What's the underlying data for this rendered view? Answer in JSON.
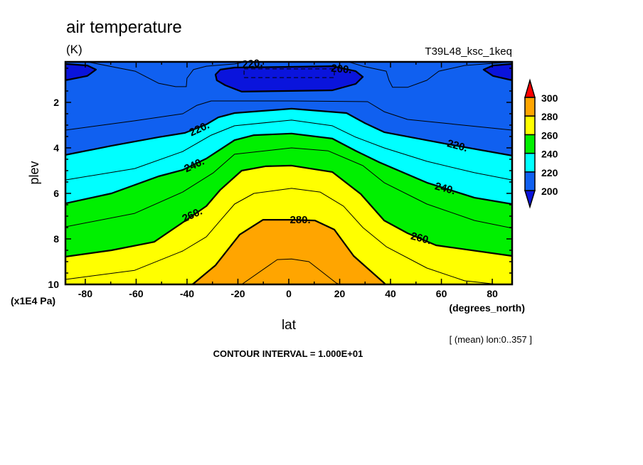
{
  "chart_data": {
    "type": "contour",
    "title": "air temperature",
    "units_label": "(K)",
    "dataset_label": "T39L48_ksc_1keq",
    "xlabel": "lat",
    "xunits": "(degrees_north)",
    "ylabel": "plev",
    "yunits": "(x1E4 Pa)",
    "xlim": [
      -87.8,
      87.8
    ],
    "ylim": [
      10,
      0.22
    ],
    "xticks": [
      -80,
      -60,
      -40,
      -20,
      0,
      20,
      40,
      60,
      80
    ],
    "xtick_labels": [
      "-80",
      "-60",
      "-40",
      "-20",
      "0",
      "20",
      "40",
      "60",
      "80"
    ],
    "yticks": [
      2,
      4,
      6,
      8,
      10
    ],
    "ytick_labels": [
      "2",
      "4",
      "6",
      "8",
      "10"
    ],
    "footer_note": "[ (mean) lon:0..357 ]",
    "contour_interval_text": "CONTOUR INTERVAL = 1.000E+01",
    "colorbar": {
      "levels": [
        200,
        220,
        240,
        260,
        280,
        300
      ],
      "labels": [
        "200",
        "220",
        "240",
        "260",
        "280",
        "300"
      ],
      "under_color": "#0a14dc",
      "colors": [
        "#1060f0",
        "#00ffff",
        "#00f000",
        "#ffff00",
        "#ffa500"
      ],
      "over_color": "#ff0000"
    },
    "contours": [
      {
        "level": 190,
        "style": "dashed",
        "closed": true,
        "points": [
          [
            -17.6,
            0.53
          ],
          [
            17.9,
            0.53
          ],
          [
            17.9,
            0.91
          ],
          [
            -17.6,
            0.91
          ]
        ]
      },
      {
        "level": 200,
        "style": "thick",
        "closed": true,
        "fill": "#0a14dc",
        "points": [
          [
            -28.8,
            0.78
          ],
          [
            -26.9,
            0.56
          ],
          [
            -21.3,
            0.47
          ],
          [
            1.1,
            0.44
          ],
          [
            17.1,
            0.41
          ],
          [
            26.3,
            0.63
          ],
          [
            29.1,
            0.88
          ],
          [
            26.3,
            1.19
          ],
          [
            17.1,
            1.47
          ],
          [
            -1.7,
            1.5
          ],
          [
            -18.5,
            1.53
          ],
          [
            -24.9,
            1.25
          ],
          [
            -28.3,
            1.03
          ]
        ]
      },
      {
        "level": 200,
        "style": "thick",
        "closed": true,
        "fill": "#0a14dc",
        "points": [
          [
            -87.8,
            0.31
          ],
          [
            -79.2,
            0.38
          ],
          [
            -75.8,
            0.56
          ],
          [
            -79.2,
            0.84
          ],
          [
            -87.8,
            1.03
          ]
        ]
      },
      {
        "level": 200,
        "style": "thick",
        "closed": true,
        "fill": "#0a14dc",
        "points": [
          [
            87.8,
            0.31
          ],
          [
            80.3,
            0.38
          ],
          [
            76.6,
            0.56
          ],
          [
            80.3,
            0.84
          ],
          [
            87.8,
            1.03
          ]
        ]
      },
      {
        "level": 210,
        "style": "thin",
        "closed": false,
        "points": [
          [
            -79.2,
            0.22
          ],
          [
            -60.4,
            0.63
          ],
          [
            -51.2,
            1.16
          ],
          [
            -44.5,
            1.31
          ],
          [
            -40.3,
            1.31
          ],
          [
            -40.0,
            0.94
          ],
          [
            -37.5,
            0.56
          ],
          [
            -32.4,
            0.41
          ],
          [
            -21.3,
            0.31
          ],
          [
            -17.1,
            0.22
          ]
        ]
      },
      {
        "level": 210,
        "style": "thin",
        "closed": false,
        "points": [
          [
            23.5,
            0.22
          ],
          [
            29.1,
            0.41
          ],
          [
            38.3,
            0.63
          ],
          [
            39.4,
            1.03
          ],
          [
            40.8,
            1.34
          ],
          [
            46.7,
            1.34
          ],
          [
            54.3,
            1.03
          ],
          [
            59.0,
            0.63
          ],
          [
            69.1,
            0.38
          ],
          [
            87.8,
            0.22
          ]
        ]
      },
      {
        "level": 210,
        "style": "thin",
        "closed": false,
        "points": [
          [
            -87.8,
            3.22
          ],
          [
            -60.6,
            2.81
          ],
          [
            -41.7,
            2.5
          ],
          [
            -36.1,
            2.13
          ],
          [
            -30.5,
            1.94
          ],
          [
            1.1,
            1.94
          ],
          [
            31.0,
            1.97
          ],
          [
            37.5,
            2.41
          ],
          [
            46.7,
            2.75
          ],
          [
            87.8,
            3.22
          ]
        ]
      },
      {
        "level": 220,
        "style": "thick",
        "closed": false,
        "fill_below": "#00ffff",
        "points": [
          [
            -87.8,
            4.31
          ],
          [
            -69.7,
            3.91
          ],
          [
            -51.2,
            3.53
          ],
          [
            -40.8,
            3.34
          ],
          [
            -32.4,
            2.97
          ],
          [
            -27.7,
            2.66
          ],
          [
            -21.3,
            2.47
          ],
          [
            1.1,
            2.28
          ],
          [
            22.7,
            2.47
          ],
          [
            29.9,
            2.91
          ],
          [
            37.5,
            3.31
          ],
          [
            62.7,
            3.84
          ],
          [
            87.8,
            4.34
          ]
        ]
      },
      {
        "level": 230,
        "style": "thin",
        "closed": false,
        "points": [
          [
            -87.8,
            5.41
          ],
          [
            -60.6,
            4.91
          ],
          [
            -41.7,
            4.16
          ],
          [
            -30.5,
            3.44
          ],
          [
            -21.3,
            3.03
          ],
          [
            1.1,
            2.78
          ],
          [
            17.1,
            3.03
          ],
          [
            26.3,
            3.53
          ],
          [
            37.5,
            4.0
          ],
          [
            54.3,
            4.59
          ],
          [
            73.0,
            5.09
          ],
          [
            87.8,
            5.41
          ]
        ]
      },
      {
        "level": 240,
        "style": "thick",
        "closed": false,
        "fill_below": "#00f000",
        "points": [
          [
            -87.8,
            6.44
          ],
          [
            -69.7,
            6.0
          ],
          [
            -51.2,
            5.25
          ],
          [
            -41.7,
            4.97
          ],
          [
            -32.4,
            4.47
          ],
          [
            -27.7,
            4.13
          ],
          [
            -21.3,
            3.66
          ],
          [
            -13.7,
            3.44
          ],
          [
            1.1,
            3.37
          ],
          [
            17.1,
            3.59
          ],
          [
            26.3,
            4.13
          ],
          [
            35.5,
            4.63
          ],
          [
            54.3,
            5.53
          ],
          [
            73.0,
            6.19
          ],
          [
            87.8,
            6.47
          ]
        ]
      },
      {
        "level": 250,
        "style": "thin",
        "closed": false,
        "points": [
          [
            -87.8,
            7.47
          ],
          [
            -60.6,
            6.88
          ],
          [
            -41.7,
            5.94
          ],
          [
            -29.6,
            5.09
          ],
          [
            -21.3,
            4.28
          ],
          [
            1.1,
            4.0
          ],
          [
            15.4,
            4.13
          ],
          [
            29.1,
            4.78
          ],
          [
            37.5,
            5.53
          ],
          [
            54.3,
            6.47
          ],
          [
            73.0,
            7.19
          ],
          [
            87.8,
            7.53
          ]
        ]
      },
      {
        "level": 260,
        "style": "thick",
        "closed": false,
        "fill_below": "#ffff00",
        "points": [
          [
            -87.8,
            8.78
          ],
          [
            -69.7,
            8.5
          ],
          [
            -52.9,
            8.13
          ],
          [
            -41.7,
            7.28
          ],
          [
            -32.4,
            6.56
          ],
          [
            -26.9,
            5.84
          ],
          [
            -18.5,
            5.0
          ],
          [
            -9.2,
            4.81
          ],
          [
            1.1,
            4.78
          ],
          [
            17.1,
            5.06
          ],
          [
            28.3,
            6.03
          ],
          [
            37.5,
            7.19
          ],
          [
            46.7,
            7.75
          ],
          [
            57.9,
            8.28
          ],
          [
            87.8,
            8.75
          ]
        ]
      },
      {
        "level": 270,
        "style": "thin",
        "closed": false,
        "points": [
          [
            -87.8,
            9.78
          ],
          [
            -60.6,
            9.38
          ],
          [
            -41.7,
            8.53
          ],
          [
            -32.4,
            7.91
          ],
          [
            -26.9,
            7.19
          ],
          [
            -21.3,
            6.47
          ],
          [
            -13.7,
            6.0
          ],
          [
            1.1,
            5.78
          ],
          [
            12.3,
            5.94
          ],
          [
            21.5,
            6.56
          ],
          [
            29.1,
            7.5
          ],
          [
            38.3,
            8.34
          ],
          [
            54.3,
            9.28
          ],
          [
            69.1,
            9.84
          ],
          [
            82.2,
            10.0
          ]
        ]
      },
      {
        "level": 280,
        "style": "thick",
        "closed": false,
        "fill_below": "#ffa500",
        "points": [
          [
            -38.0,
            10.0
          ],
          [
            -37.5,
            9.97
          ],
          [
            -28.8,
            9.16
          ],
          [
            -19.3,
            7.81
          ],
          [
            -10.1,
            7.16
          ],
          [
            1.1,
            7.16
          ],
          [
            10.3,
            7.19
          ],
          [
            17.9,
            7.59
          ],
          [
            25.5,
            8.75
          ],
          [
            37.5,
            9.94
          ],
          [
            38.0,
            10.0
          ]
        ]
      },
      {
        "level": 290,
        "style": "thin",
        "closed": false,
        "points": [
          [
            -18.5,
            10.0
          ],
          [
            -4.5,
            8.91
          ],
          [
            1.1,
            8.88
          ],
          [
            7.9,
            9.0
          ],
          [
            18.7,
            9.94
          ],
          [
            20.0,
            10.0
          ]
        ]
      }
    ],
    "contour_labels": [
      {
        "text": "220.",
        "lat": -14.3,
        "plev": 0.3
      },
      {
        "text": "200.",
        "lat": 20.7,
        "plev": 0.53
      },
      {
        "text": "220.",
        "lat": -35.2,
        "plev": 3.16
      },
      {
        "text": "240.",
        "lat": -37.2,
        "plev": 4.75
      },
      {
        "text": "260.",
        "lat": -38.0,
        "plev": 6.94
      },
      {
        "text": "280.",
        "lat": 4.5,
        "plev": 7.16
      },
      {
        "text": "220.",
        "lat": 66.3,
        "plev": 3.9
      },
      {
        "text": "240.",
        "lat": 61.5,
        "plev": 5.78
      },
      {
        "text": "260.",
        "lat": 52.0,
        "plev": 7.97
      }
    ]
  }
}
